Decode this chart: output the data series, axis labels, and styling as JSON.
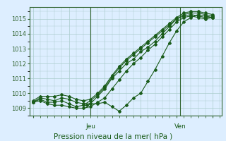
{
  "xlabel": "Pression niveau de la mer( hPa )",
  "background_color": "#ddeeff",
  "grid_color": "#aacccc",
  "line_color": "#1a5c1a",
  "ylim": [
    1008.5,
    1015.8
  ],
  "yticks": [
    1009,
    1010,
    1011,
    1012,
    1013,
    1014,
    1015
  ],
  "xtick_labels": [
    "Jeu",
    "Ven"
  ],
  "xtick_positions": [
    0.32,
    0.82
  ],
  "series": [
    {
      "x": [
        0.0,
        0.04,
        0.08,
        0.12,
        0.16,
        0.2,
        0.24,
        0.28,
        0.32,
        0.36,
        0.4,
        0.44,
        0.48,
        0.52,
        0.56,
        0.6,
        0.64,
        0.68,
        0.72,
        0.76,
        0.8,
        0.84,
        0.88,
        0.92,
        0.96,
        1.0
      ],
      "y": [
        1009.4,
        1009.7,
        1009.6,
        1009.5,
        1009.7,
        1009.6,
        1009.4,
        1009.3,
        1009.3,
        1009.8,
        1010.3,
        1011.0,
        1011.5,
        1012.0,
        1012.3,
        1012.8,
        1013.1,
        1013.5,
        1014.0,
        1014.5,
        1015.0,
        1015.2,
        1015.3,
        1015.2,
        1015.1,
        1015.1
      ]
    },
    {
      "x": [
        0.0,
        0.04,
        0.08,
        0.12,
        0.16,
        0.2,
        0.24,
        0.28,
        0.32,
        0.36,
        0.4,
        0.44,
        0.48,
        0.52,
        0.56,
        0.6,
        0.64,
        0.68,
        0.72,
        0.76,
        0.8,
        0.84,
        0.88,
        0.92,
        0.96,
        1.0
      ],
      "y": [
        1009.4,
        1009.5,
        1009.3,
        1009.2,
        1009.2,
        1009.1,
        1009.0,
        1009.0,
        1009.1,
        1009.4,
        1009.7,
        1010.3,
        1010.9,
        1011.5,
        1012.0,
        1012.4,
        1012.9,
        1013.3,
        1013.8,
        1014.3,
        1014.8,
        1015.1,
        1015.2,
        1015.1,
        1015.0,
        1015.1
      ]
    },
    {
      "x": [
        0.0,
        0.04,
        0.08,
        0.12,
        0.16,
        0.2,
        0.24,
        0.28,
        0.32,
        0.36,
        0.4,
        0.44,
        0.48,
        0.52,
        0.56,
        0.6,
        0.64,
        0.68,
        0.72,
        0.76,
        0.8,
        0.84,
        0.88,
        0.92,
        0.96,
        1.0
      ],
      "y": [
        1009.4,
        1009.6,
        1009.4,
        1009.4,
        1009.5,
        1009.3,
        1009.1,
        1009.2,
        1009.5,
        1009.9,
        1010.4,
        1011.1,
        1011.7,
        1012.2,
        1012.6,
        1013.0,
        1013.4,
        1013.8,
        1014.2,
        1014.6,
        1015.0,
        1015.3,
        1015.4,
        1015.4,
        1015.3,
        1015.2
      ]
    },
    {
      "x": [
        0.0,
        0.04,
        0.08,
        0.12,
        0.16,
        0.2,
        0.24,
        0.28,
        0.32,
        0.36,
        0.4,
        0.44,
        0.48,
        0.52,
        0.56,
        0.6,
        0.64,
        0.68,
        0.72,
        0.76,
        0.8,
        0.84,
        0.88,
        0.92,
        0.96,
        1.0
      ],
      "y": [
        1009.5,
        1009.8,
        1009.8,
        1009.8,
        1009.9,
        1009.8,
        1009.6,
        1009.5,
        1009.6,
        1010.0,
        1010.5,
        1011.2,
        1011.8,
        1012.3,
        1012.7,
        1013.1,
        1013.5,
        1013.9,
        1014.3,
        1014.7,
        1015.1,
        1015.4,
        1015.5,
        1015.5,
        1015.4,
        1015.3
      ]
    },
    {
      "x": [
        0.3,
        0.32,
        0.36,
        0.4,
        0.44,
        0.48,
        0.52,
        0.56,
        0.6,
        0.64,
        0.68,
        0.72,
        0.76,
        0.8,
        0.84,
        0.88,
        0.92,
        0.96,
        1.0
      ],
      "y": [
        1009.2,
        1009.3,
        1009.3,
        1009.4,
        1009.1,
        1008.8,
        1009.2,
        1009.7,
        1010.0,
        1010.8,
        1011.6,
        1012.5,
        1013.4,
        1014.2,
        1014.8,
        1015.1,
        1015.3,
        1015.2,
        1015.1
      ]
    }
  ]
}
